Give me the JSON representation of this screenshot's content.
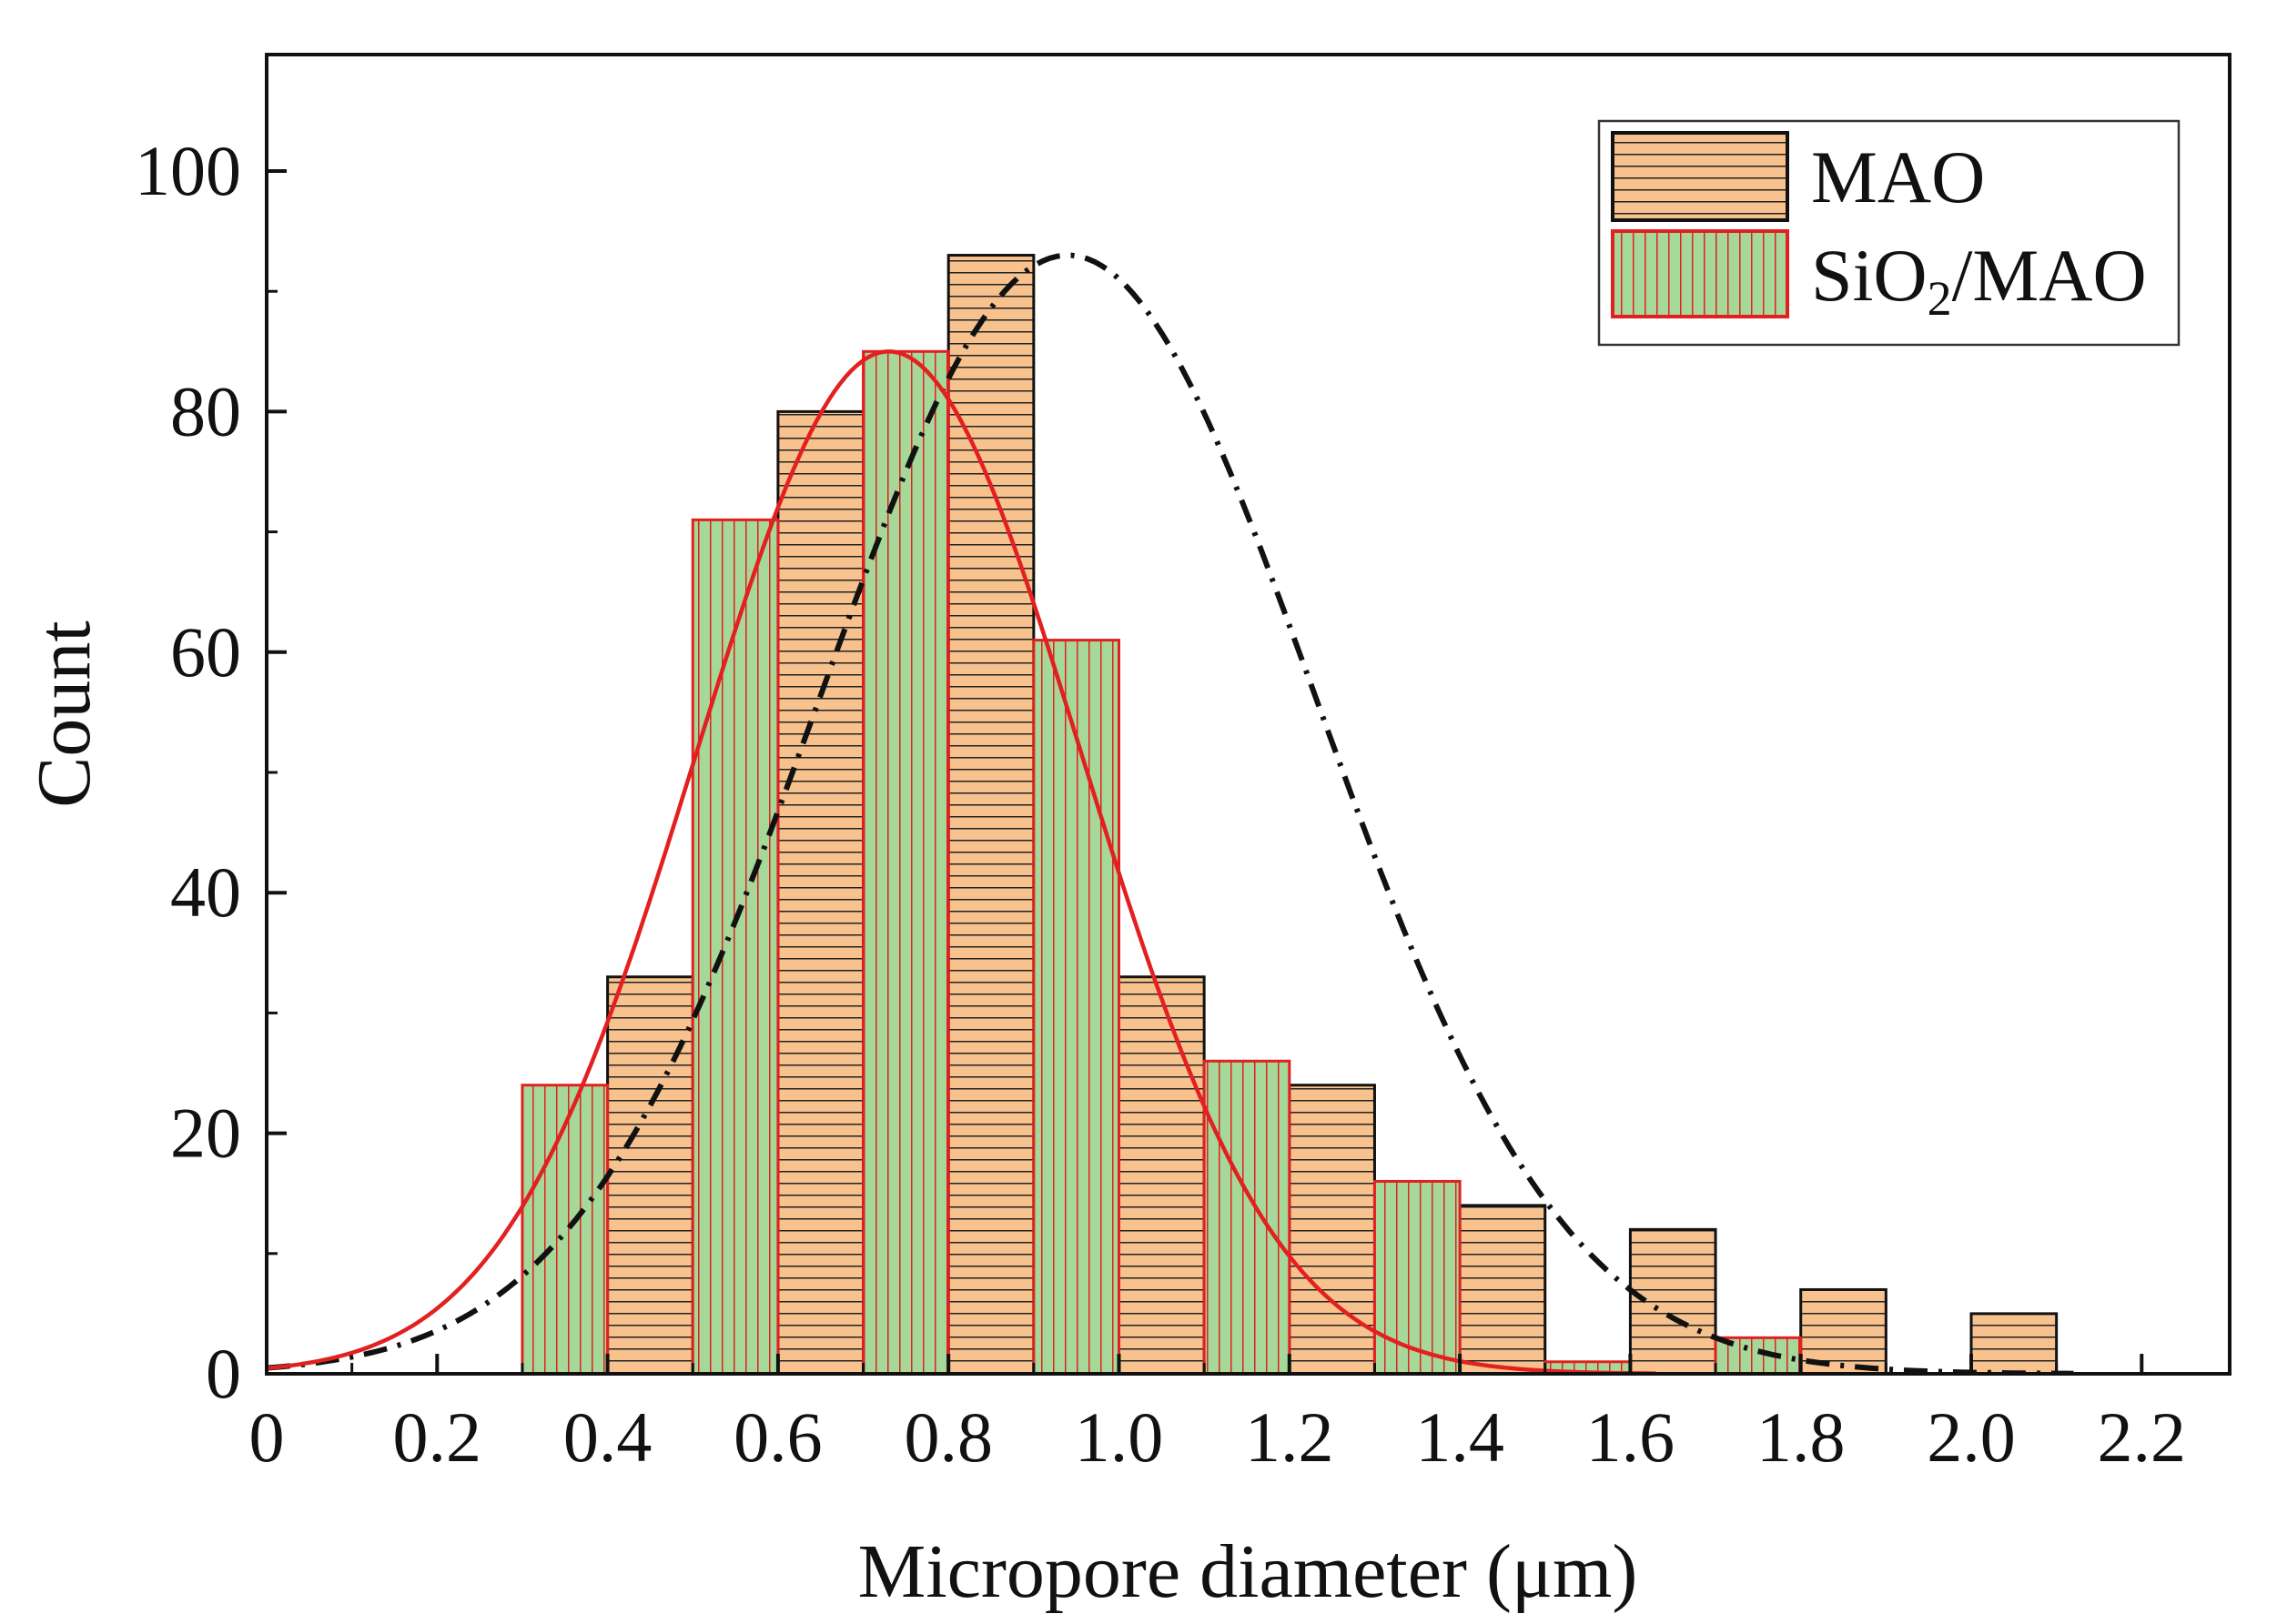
{
  "chart_data": {
    "type": "histogram",
    "xlabel": "Micropore diameter (μm)",
    "ylabel": "Count",
    "xlim": [
      0,
      2.3
    ],
    "ylim": [
      0,
      110
    ],
    "xticks": [
      "0",
      "0.2",
      "0.4",
      "0.6",
      "0.8",
      "1.0",
      "1.2",
      "1.4",
      "1.6",
      "1.8",
      "2.0",
      "2.2"
    ],
    "yticks": [
      "0",
      "20",
      "40",
      "60",
      "80",
      "100"
    ],
    "legend": {
      "position": "top-right",
      "entries": [
        {
          "label": "MAO",
          "sub": "",
          "tail": ""
        },
        {
          "label": "SiO",
          "sub": "2",
          "tail": "/MAO"
        }
      ]
    },
    "colors": {
      "mao_fill": "#f7c28e",
      "mao_stripe": "#222222",
      "sio2_fill": "#a6d89a",
      "sio2_stripe": "#e32020",
      "fit_sio2": "#e32020",
      "fit_mao": "#111111"
    },
    "bin_width": 0.1,
    "series": [
      {
        "name": "MAO",
        "pattern": "horizontal-lines",
        "bins": [
          {
            "x": 0.4,
            "count": 33
          },
          {
            "x": 0.6,
            "count": 80
          },
          {
            "x": 0.8,
            "count": 93
          },
          {
            "x": 1.0,
            "count": 33
          },
          {
            "x": 1.2,
            "count": 24
          },
          {
            "x": 1.4,
            "count": 14
          },
          {
            "x": 1.6,
            "count": 12
          },
          {
            "x": 1.8,
            "count": 7
          },
          {
            "x": 2.0,
            "count": 5
          }
        ],
        "fit": {
          "type": "gaussian",
          "peak_x": 0.94,
          "peak_y": 93,
          "sigma": 0.29,
          "style": "dash-dot",
          "x_range": [
            0,
            2.12
          ]
        }
      },
      {
        "name": "SiO2/MAO",
        "pattern": "vertical-lines",
        "bins": [
          {
            "x": 0.3,
            "count": 24
          },
          {
            "x": 0.5,
            "count": 71
          },
          {
            "x": 0.7,
            "count": 85
          },
          {
            "x": 0.9,
            "count": 61
          },
          {
            "x": 1.1,
            "count": 26
          },
          {
            "x": 1.3,
            "count": 16
          },
          {
            "x": 1.5,
            "count": 1
          },
          {
            "x": 1.7,
            "count": 3
          }
        ],
        "fit": {
          "type": "gaussian",
          "peak_x": 0.73,
          "peak_y": 85,
          "sigma": 0.226,
          "style": "solid",
          "x_range": [
            0,
            1.63
          ]
        }
      }
    ]
  }
}
